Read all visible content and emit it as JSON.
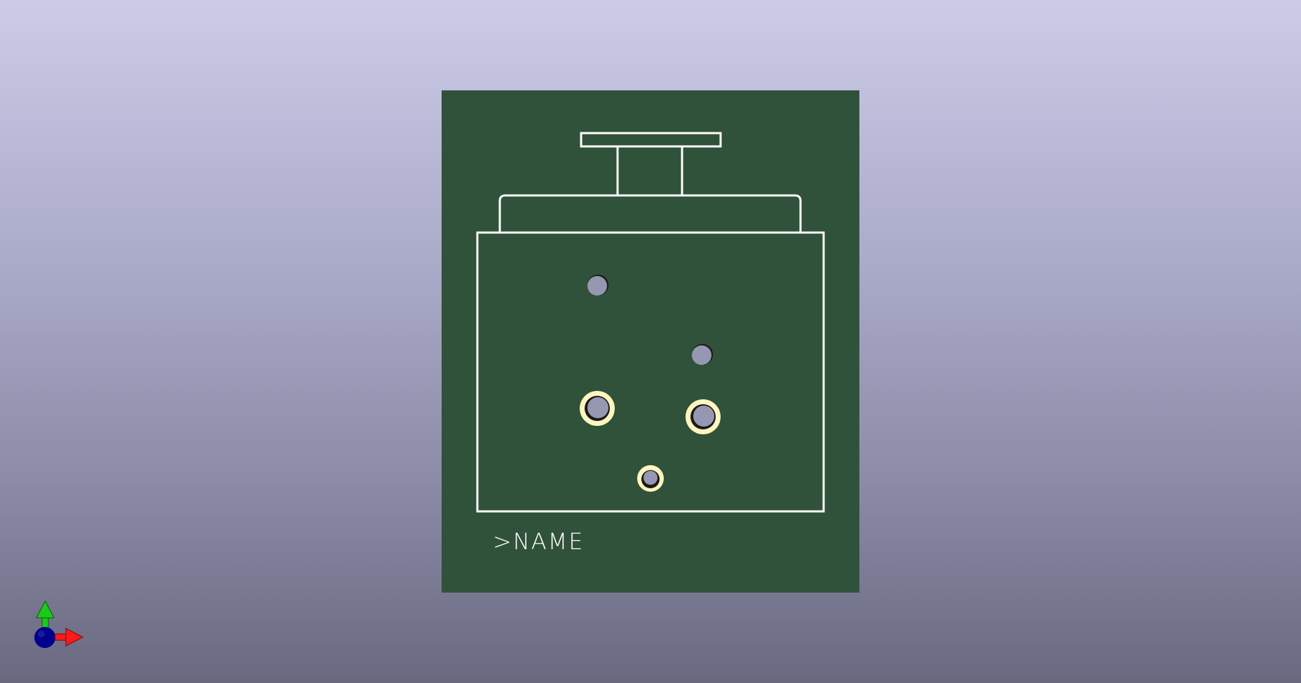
{
  "viewer": {
    "background_top": "#cccce8",
    "background_bottom": "#68687f"
  },
  "board": {
    "substrate_color": "#30523a",
    "silkscreen_color": "#ffffff",
    "pad_color": "#fff6bf",
    "hole_color": "#9698b2",
    "silk_label": ">NAME"
  },
  "axes": {
    "x_color": "#ff1a1a",
    "y_color": "#1acc1a",
    "z_color": "#00008c",
    "icon": "xyz-axis-triad-icon"
  }
}
